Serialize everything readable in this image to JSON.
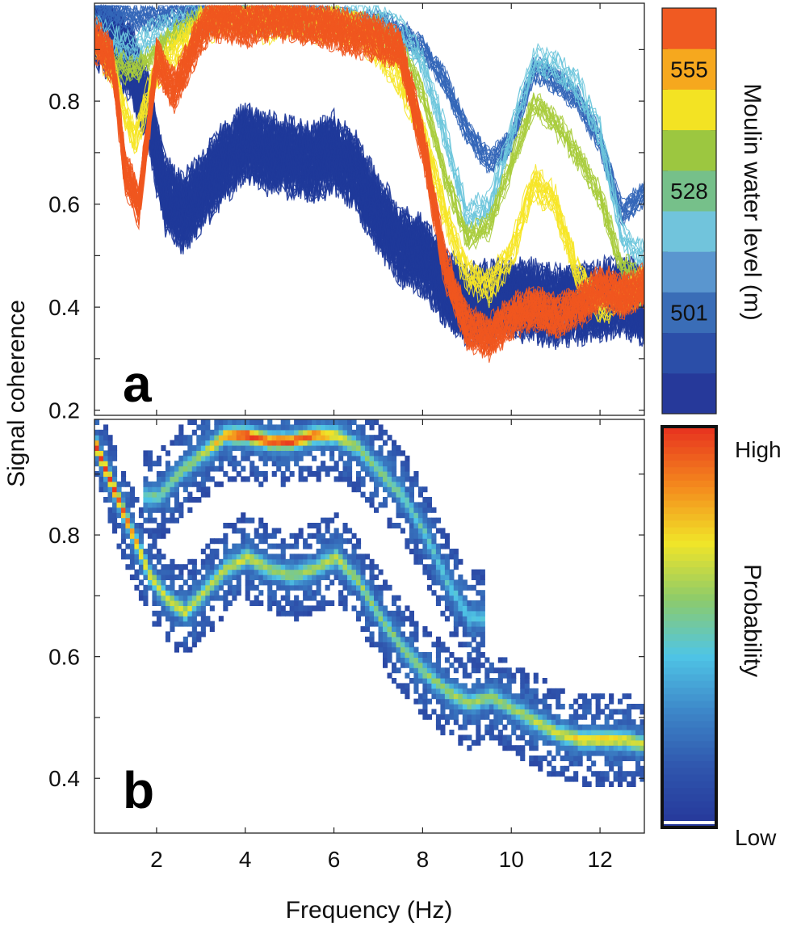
{
  "chart_data": [
    {
      "panel": "a",
      "type": "line",
      "xlabel": "Frequency (Hz)",
      "ylabel": "Signal coherence",
      "xlim": [
        0.6,
        13.0
      ],
      "ylim": [
        0.19,
        0.99
      ],
      "xticks": [
        2,
        4,
        6,
        8,
        10,
        12
      ],
      "yticks": [
        0.2,
        0.4,
        0.6,
        0.8
      ],
      "grid": false,
      "colorbar": {
        "title": "Moulin water level (m)",
        "labels": [
          "555",
          "528",
          "501"
        ],
        "colors": [
          "#26399a",
          "#2b4ea8",
          "#3a6db7",
          "#5a96cf",
          "#71c4dc",
          "#76c08a",
          "#9cc740",
          "#f3e323",
          "#f6a81e",
          "#f05a22"
        ]
      },
      "series": [
        {
          "color": "#1f3a9a",
          "x": [
            0.6,
            1.0,
            1.4,
            1.8,
            2.2,
            2.6,
            3.0,
            3.5,
            4.0,
            4.5,
            5.0,
            5.5,
            6.0,
            6.5,
            7.0,
            7.5,
            8.0,
            8.5,
            9.0,
            9.5,
            10.0,
            10.5,
            11.0,
            11.5,
            12.0,
            12.5,
            13.0
          ],
          "y": [
            0.94,
            0.92,
            0.88,
            0.78,
            0.62,
            0.58,
            0.62,
            0.68,
            0.72,
            0.7,
            0.69,
            0.68,
            0.7,
            0.66,
            0.58,
            0.52,
            0.5,
            0.44,
            0.4,
            0.41,
            0.42,
            0.41,
            0.4,
            0.41,
            0.41,
            0.42,
            0.4
          ]
        },
        {
          "color": "#3366b8",
          "x": [
            0.6,
            1.0,
            1.5,
            2.0,
            2.5,
            3.0,
            3.5,
            4.0,
            4.5,
            5.0,
            5.5,
            6.0,
            6.5,
            7.0,
            7.5,
            8.0,
            8.5,
            9.0,
            9.5,
            10.0,
            10.5,
            11.0,
            11.5,
            12.0,
            12.5,
            13.0
          ],
          "y": [
            0.98,
            0.97,
            0.96,
            0.96,
            0.97,
            0.97,
            0.97,
            0.97,
            0.97,
            0.97,
            0.97,
            0.96,
            0.95,
            0.95,
            0.93,
            0.9,
            0.84,
            0.74,
            0.68,
            0.72,
            0.86,
            0.84,
            0.8,
            0.72,
            0.58,
            0.62
          ]
        },
        {
          "color": "#6cc5dc",
          "x": [
            0.6,
            1.0,
            1.5,
            2.0,
            2.5,
            3.0,
            3.5,
            4.0,
            4.5,
            5.0,
            5.5,
            6.0,
            6.5,
            7.0,
            7.5,
            8.0,
            8.5,
            9.0,
            9.5,
            10.0,
            10.5,
            11.0,
            11.5,
            12.0,
            12.5,
            13.0
          ],
          "y": [
            0.94,
            0.92,
            0.9,
            0.94,
            0.95,
            0.96,
            0.97,
            0.97,
            0.96,
            0.97,
            0.96,
            0.96,
            0.96,
            0.96,
            0.94,
            0.88,
            0.74,
            0.58,
            0.6,
            0.74,
            0.88,
            0.87,
            0.83,
            0.74,
            0.54,
            0.5
          ]
        },
        {
          "color": "#a8cc3c",
          "x": [
            0.6,
            1.0,
            1.5,
            2.0,
            2.5,
            3.0,
            3.5,
            4.0,
            4.5,
            5.0,
            5.5,
            6.0,
            6.5,
            7.0,
            7.5,
            8.0,
            8.5,
            9.0,
            9.5,
            10.0,
            10.5,
            11.0,
            11.5,
            12.0,
            12.5,
            13.0
          ],
          "y": [
            0.92,
            0.88,
            0.86,
            0.9,
            0.94,
            0.96,
            0.97,
            0.97,
            0.96,
            0.96,
            0.95,
            0.96,
            0.95,
            0.94,
            0.9,
            0.82,
            0.66,
            0.54,
            0.56,
            0.68,
            0.8,
            0.76,
            0.7,
            0.62,
            0.48,
            0.46
          ]
        },
        {
          "color": "#f6e526",
          "x": [
            0.6,
            1.0,
            1.5,
            2.0,
            2.5,
            3.0,
            3.5,
            4.0,
            4.5,
            5.0,
            5.5,
            6.0,
            6.5,
            7.0,
            7.5,
            8.0,
            8.5,
            9.0,
            9.5,
            10.0,
            10.5,
            11.0,
            11.5,
            12.0,
            12.5,
            13.0
          ],
          "y": [
            0.92,
            0.86,
            0.72,
            0.86,
            0.9,
            0.95,
            0.96,
            0.96,
            0.95,
            0.96,
            0.95,
            0.95,
            0.94,
            0.9,
            0.84,
            0.74,
            0.58,
            0.46,
            0.44,
            0.5,
            0.64,
            0.6,
            0.46,
            0.4,
            0.42,
            0.44
          ]
        },
        {
          "color": "#f0561f",
          "x": [
            0.6,
            1.0,
            1.3,
            1.6,
            2.0,
            2.4,
            2.8,
            3.2,
            3.6,
            4.0,
            4.5,
            5.0,
            5.5,
            6.0,
            6.5,
            7.0,
            7.5,
            8.0,
            8.5,
            9.0,
            9.5,
            10.0,
            10.5,
            11.0,
            11.5,
            12.0,
            12.5,
            13.0
          ],
          "y": [
            0.92,
            0.88,
            0.66,
            0.6,
            0.88,
            0.82,
            0.9,
            0.96,
            0.96,
            0.95,
            0.96,
            0.96,
            0.95,
            0.94,
            0.93,
            0.92,
            0.9,
            0.72,
            0.48,
            0.36,
            0.34,
            0.38,
            0.4,
            0.38,
            0.4,
            0.44,
            0.42,
            0.44
          ]
        }
      ]
    },
    {
      "panel": "b",
      "type": "heatmap",
      "xlabel": "Frequency (Hz)",
      "ylabel": "Signal coherence",
      "xlim": [
        0.6,
        13.0
      ],
      "ylim": [
        0.31,
        0.99
      ],
      "xticks": [
        2,
        4,
        6,
        8,
        10,
        12
      ],
      "yticks": [
        0.4,
        0.6,
        0.8
      ],
      "grid": false,
      "colorbar": {
        "title": "Probability",
        "labels": [
          "High",
          "Low"
        ],
        "colors": [
          "#26389a",
          "#2f55ad",
          "#3d86c8",
          "#4fc5e6",
          "#8dcb6a",
          "#f1e528",
          "#f48a1d",
          "#e8361f"
        ]
      },
      "ridges": [
        {
          "name_hidden": "main",
          "x": [
            0.6,
            1.0,
            1.4,
            1.8,
            2.2,
            2.6,
            3.0,
            3.5,
            4.0,
            4.5,
            5.0,
            5.5,
            6.0,
            6.5,
            7.0,
            7.5,
            8.0,
            8.5,
            9.0,
            9.5,
            10.0,
            10.5,
            11.0,
            11.5,
            12.0,
            12.5,
            13.0
          ],
          "y": [
            0.94,
            0.87,
            0.8,
            0.73,
            0.69,
            0.67,
            0.7,
            0.74,
            0.76,
            0.74,
            0.73,
            0.74,
            0.76,
            0.72,
            0.66,
            0.61,
            0.57,
            0.54,
            0.52,
            0.53,
            0.51,
            0.49,
            0.47,
            0.46,
            0.46,
            0.46,
            0.45
          ],
          "intensity": [
            1.0,
            0.95,
            0.75,
            0.6,
            0.55,
            0.55,
            0.5,
            0.5,
            0.55,
            0.45,
            0.45,
            0.45,
            0.5,
            0.45,
            0.4,
            0.4,
            0.42,
            0.45,
            0.45,
            0.45,
            0.45,
            0.5,
            0.55,
            0.62,
            0.62,
            0.6,
            0.55
          ]
        },
        {
          "name_hidden": "upper",
          "x": [
            2.0,
            2.5,
            3.0,
            3.5,
            4.0,
            4.5,
            5.0,
            5.5,
            6.0,
            6.5,
            7.0,
            7.5,
            8.0,
            8.5,
            9.0
          ],
          "y": [
            0.86,
            0.9,
            0.93,
            0.96,
            0.96,
            0.95,
            0.95,
            0.96,
            0.96,
            0.94,
            0.9,
            0.86,
            0.8,
            0.72,
            0.66
          ],
          "intensity": [
            0.35,
            0.4,
            0.5,
            0.75,
            0.92,
            0.88,
            0.9,
            0.85,
            0.6,
            0.45,
            0.4,
            0.35,
            0.3,
            0.28,
            0.25
          ]
        }
      ]
    }
  ]
}
